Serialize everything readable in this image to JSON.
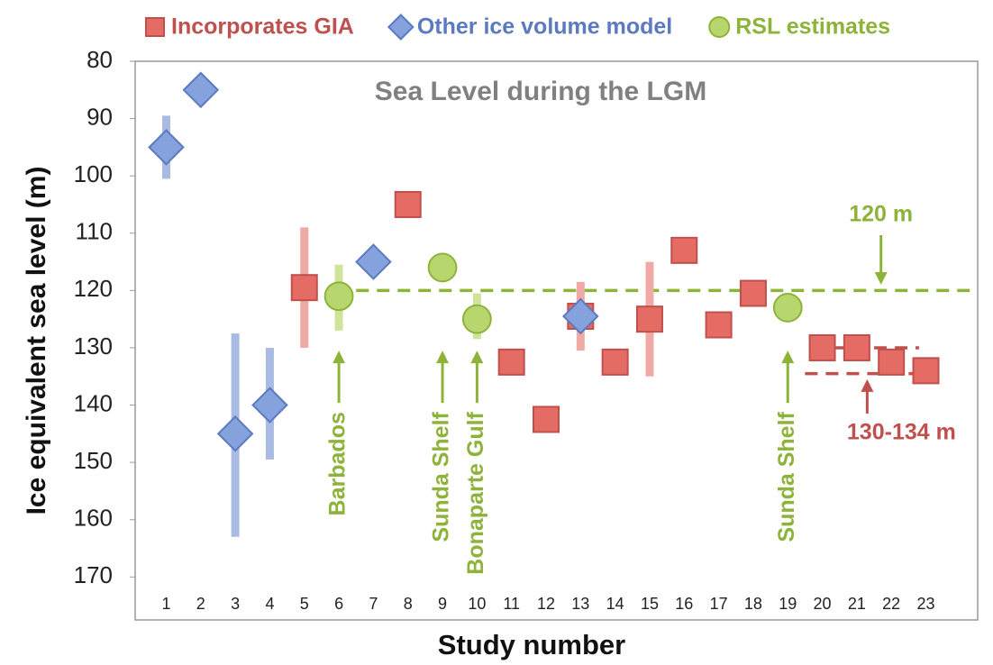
{
  "chart_data": {
    "type": "scatter",
    "title": "Sea Level during the LGM",
    "x_label": "Study number",
    "y_label": "Ice equivalent sea level (m)",
    "xlim": [
      0.1,
      24.5
    ],
    "xticks": [
      1,
      2,
      3,
      4,
      5,
      6,
      7,
      8,
      9,
      10,
      11,
      12,
      13,
      14,
      15,
      16,
      17,
      18,
      19,
      20,
      21,
      22,
      23
    ],
    "ylim": [
      80,
      177.5
    ],
    "yticks": [
      80,
      90,
      100,
      110,
      120,
      130,
      140,
      150,
      160,
      170
    ],
    "y_inverted": true,
    "series": [
      {
        "name": "Incorporates GIA",
        "color": "#c0504d",
        "fill": "#e46c64",
        "error_color": "#f0aaa5",
        "marker": "square",
        "x": [
          5,
          8,
          11,
          12,
          13,
          14,
          15,
          16,
          17,
          18,
          20,
          21,
          22,
          23
        ],
        "values": [
          119.5,
          105,
          132.5,
          142.5,
          124.5,
          132.5,
          125,
          113,
          126,
          120.5,
          130,
          130,
          132.5,
          134
        ],
        "ranges": [
          [
            109,
            130
          ],
          null,
          null,
          null,
          [
            118.5,
            130.5
          ],
          null,
          [
            115,
            135
          ],
          null,
          null,
          null,
          null,
          null,
          null,
          null
        ]
      },
      {
        "name": "Other ice volume model",
        "color": "#5b7ac0",
        "fill": "#85a2dc",
        "error_color": "#a9bbe3",
        "marker": "diamond",
        "x": [
          1,
          2,
          3,
          4,
          7,
          13
        ],
        "values": [
          95,
          85,
          145,
          140,
          115,
          124.5
        ],
        "ranges": [
          [
            89.5,
            100.5
          ],
          null,
          [
            127.5,
            163
          ],
          [
            130,
            149.5
          ],
          null,
          null
        ]
      },
      {
        "name": "RSL estimates",
        "color": "#8db33a",
        "fill": "#b8d66e",
        "error_color": "#cfe49a",
        "marker": "circle",
        "x": [
          6,
          9,
          10,
          19
        ],
        "values": [
          121,
          116,
          125,
          123
        ],
        "ranges": [
          [
            115.5,
            127
          ],
          null,
          [
            120.5,
            128.5
          ],
          null
        ]
      }
    ],
    "reference_lines": [
      {
        "value": 120,
        "color": "#8db33a",
        "xrange": [
          6.5,
          24.5
        ]
      },
      {
        "value": 130,
        "color": "#c0504d",
        "xrange": [
          20.3,
          22.8
        ]
      },
      {
        "value": 134.5,
        "color": "#c0504d",
        "xrange": [
          19.5,
          22.8
        ]
      }
    ],
    "annotations": [
      {
        "text": "Barbados",
        "x": 6,
        "y": 130.5,
        "direction": "up",
        "color": "#8db33a"
      },
      {
        "text": "Sunda Shelf",
        "x": 9,
        "y": 130.5,
        "direction": "up",
        "color": "#8db33a"
      },
      {
        "text": "Bonaparte Gulf",
        "x": 10,
        "y": 130.5,
        "direction": "up",
        "color": "#8db33a"
      },
      {
        "text": "Sunda Shelf",
        "x": 19,
        "y": 130.5,
        "direction": "up",
        "color": "#8db33a"
      },
      {
        "text": "120 m",
        "x": 21.7,
        "y": 119,
        "direction": "down",
        "color": "#8db33a"
      },
      {
        "text": "130-134 m",
        "x": 21.3,
        "y": 135.5,
        "direction": "below",
        "color": "#c0504d"
      }
    ]
  }
}
